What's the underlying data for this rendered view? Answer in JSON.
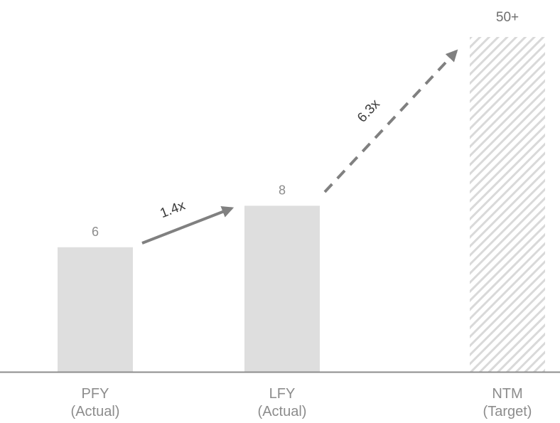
{
  "chart_data": {
    "type": "bar",
    "categories": [
      {
        "line1": "PFY",
        "line2": "(Actual)"
      },
      {
        "line1": "LFY",
        "line2": "(Actual)"
      },
      {
        "line1": "NTM",
        "line2": "(Target)"
      }
    ],
    "values": [
      6,
      8,
      50
    ],
    "value_labels": [
      "6",
      "8",
      "50+"
    ],
    "bar_styles": [
      "solid",
      "solid",
      "hatched"
    ],
    "ylim": [
      0,
      54
    ],
    "grid": false,
    "growth_arrows": [
      {
        "from": 0,
        "to": 1,
        "label": "1.4x",
        "style": "solid"
      },
      {
        "from": 1,
        "to": 2,
        "label": "6.3x",
        "style": "dashed"
      }
    ],
    "colors": {
      "bar": "#dedede",
      "hatch": "#d9d9d9",
      "axis": "#8c8c8c",
      "arrow": "#808080"
    }
  }
}
